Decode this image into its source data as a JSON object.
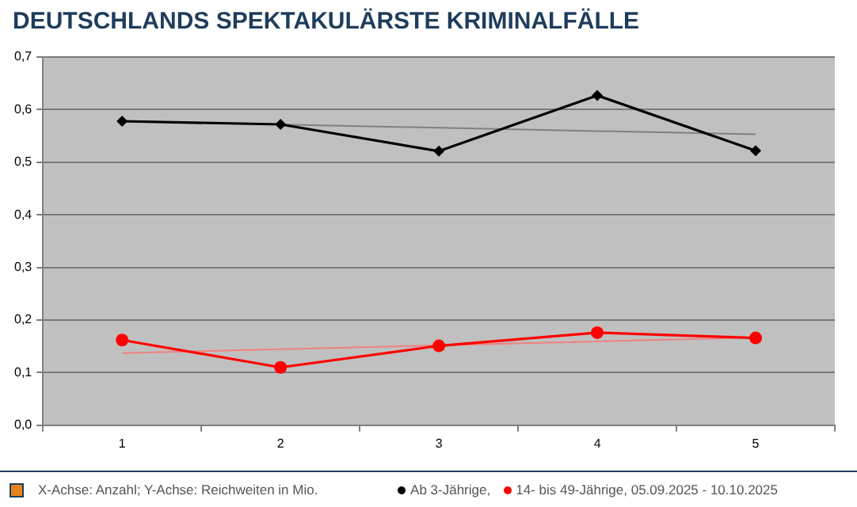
{
  "chart_data": {
    "type": "line",
    "title": "DEUTSCHLANDS SPEKTAKULÄRSTE KRIMINALFÄLLE",
    "categories": [
      "1",
      "2",
      "3",
      "4",
      "5"
    ],
    "series": [
      {
        "name": "Ab 3-Jährige,",
        "color": "#000000",
        "marker": "diamond",
        "values": [
          0.578,
          0.572,
          0.521,
          0.627,
          0.522
        ]
      },
      {
        "name": "14- bis 49-Jährige, 05.09.2025 - 10.10.2025",
        "color": "#ff0000",
        "marker": "circle",
        "values": [
          0.162,
          0.11,
          0.151,
          0.176,
          0.166
        ]
      },
      {
        "color": "#808080",
        "marker": "none",
        "values": [
          0.578,
          null,
          null,
          null,
          0.553
        ]
      },
      {
        "color": "#f08080",
        "marker": "none",
        "values": [
          0.137,
          null,
          null,
          null,
          0.167
        ]
      }
    ],
    "ylim": [
      0,
      0.7
    ],
    "yticks": [
      {
        "value": 0,
        "label": "0,0"
      },
      {
        "value": 0.1,
        "label": "0,1"
      },
      {
        "value": 0.2,
        "label": "0,2"
      },
      {
        "value": 0.3,
        "label": "0,3"
      },
      {
        "value": 0.4,
        "label": "0,4"
      },
      {
        "value": 0.5,
        "label": "0,5"
      },
      {
        "value": 0.6,
        "label": "0,6"
      },
      {
        "value": 0.7,
        "label": "0,7"
      }
    ],
    "grid": "y",
    "legend": "bottom",
    "annotations": [
      "X-Achse: Anzahl; Y-Achse: Reichweiten in Mio."
    ]
  }
}
